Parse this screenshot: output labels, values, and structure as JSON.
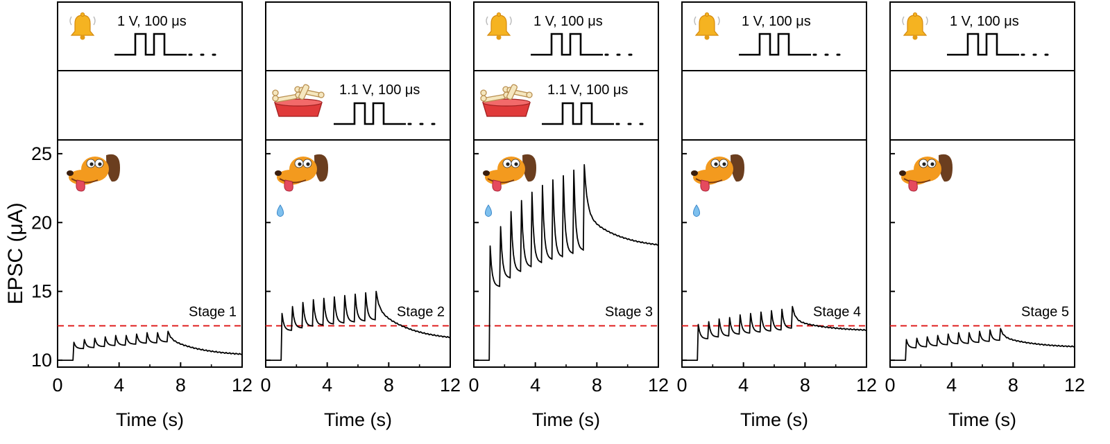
{
  "figure": {
    "y_axis_label": "EPSC (μA)",
    "x_axis_label": "Time (s)",
    "threshold_color": "#e02020",
    "trace_color": "#000000",
    "icons": {
      "bell": "bell-icon",
      "food": "dog-bowl-with-bones-icon",
      "dog": "dog-head-icon",
      "saliva": "saliva-drop-icon"
    }
  },
  "chart_data": [
    {
      "type": "line",
      "stage_label": "Stage 1",
      "bell_pulse": "1 V, 100 μs",
      "food_pulse": "",
      "salivation": false,
      "xlim": [
        0,
        12
      ],
      "ylim": [
        9.5,
        26
      ],
      "x_ticks": [
        0,
        4,
        8,
        12
      ],
      "y_ticks": [
        10,
        15,
        20,
        25
      ],
      "threshold_y": 12.5,
      "baseline": 10,
      "peaks": [
        11.3,
        11.5,
        11.6,
        11.7,
        11.8,
        11.8,
        11.9,
        12.0,
        12.0,
        12.1
      ],
      "end_value": 10.3
    },
    {
      "type": "line",
      "stage_label": "Stage 2",
      "bell_pulse": "",
      "food_pulse": "1.1 V, 100 μs",
      "salivation": true,
      "xlim": [
        0,
        12
      ],
      "ylim": [
        9.5,
        26
      ],
      "x_ticks": [
        0,
        4,
        8,
        12
      ],
      "y_ticks": [
        10,
        15,
        20,
        25
      ],
      "threshold_y": 12.5,
      "baseline": 10,
      "peaks": [
        13.4,
        13.9,
        14.2,
        14.4,
        14.5,
        14.6,
        14.7,
        14.8,
        14.9,
        15.0
      ],
      "end_value": 11.4
    },
    {
      "type": "line",
      "stage_label": "Stage 3",
      "bell_pulse": "1 V, 100 μs",
      "food_pulse": "1.1 V, 100 μs",
      "salivation": true,
      "xlim": [
        0,
        12
      ],
      "ylim": [
        9.5,
        26
      ],
      "x_ticks": [
        0,
        4,
        8,
        12
      ],
      "y_ticks": [
        10,
        15,
        20,
        25
      ],
      "threshold_y": 12.5,
      "baseline": 10,
      "peaks": [
        18.3,
        19.7,
        20.8,
        21.6,
        22.2,
        22.7,
        23.1,
        23.4,
        23.8,
        24.2
      ],
      "end_value": 18.1
    },
    {
      "type": "line",
      "stage_label": "Stage 4",
      "bell_pulse": "1 V, 100 μs",
      "food_pulse": "",
      "salivation": true,
      "xlim": [
        0,
        12
      ],
      "ylim": [
        9.5,
        26
      ],
      "x_ticks": [
        0,
        4,
        8,
        12
      ],
      "y_ticks": [
        10,
        15,
        20,
        25
      ],
      "threshold_y": 12.5,
      "baseline": 10,
      "peaks": [
        12.6,
        12.8,
        13.0,
        13.1,
        13.3,
        13.4,
        13.5,
        13.6,
        13.7,
        13.9
      ],
      "end_value": 12.1
    },
    {
      "type": "line",
      "stage_label": "Stage 5",
      "bell_pulse": "1 V, 100 μs",
      "food_pulse": "",
      "salivation": false,
      "xlim": [
        0,
        12
      ],
      "ylim": [
        9.5,
        26
      ],
      "x_ticks": [
        0,
        4,
        8,
        12
      ],
      "y_ticks": [
        10,
        15,
        20,
        25
      ],
      "threshold_y": 12.5,
      "baseline": 10,
      "peaks": [
        11.5,
        11.6,
        11.7,
        11.8,
        11.9,
        12.0,
        12.0,
        12.1,
        12.2,
        12.3
      ],
      "end_value": 10.9
    }
  ]
}
